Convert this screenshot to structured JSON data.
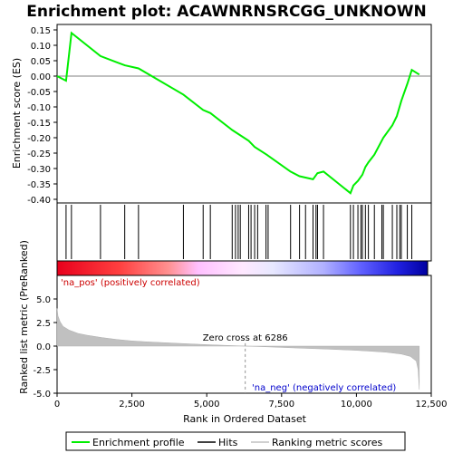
{
  "chart_data": {
    "type": "line",
    "title": "Enrichment plot: ACAWNRNSRCGG_UNKNOWN",
    "es_panel": {
      "ylabel": "Enrichment score (ES)",
      "ylim": [
        -0.4,
        0.15
      ],
      "yticks": [
        "0.15",
        "0.10",
        "0.05",
        "0.00",
        "-0.05",
        "-0.10",
        "-0.15",
        "-0.20",
        "-0.25",
        "-0.30",
        "-0.35",
        "-0.40"
      ],
      "ytick_values": [
        0.15,
        0.1,
        0.05,
        0.0,
        -0.05,
        -0.1,
        -0.15,
        -0.2,
        -0.25,
        -0.3,
        -0.35,
        -0.4
      ],
      "series": [
        {
          "name": "Enrichment profile",
          "color": "#00ee00",
          "x": [
            0,
            300,
            480,
            1450,
            2260,
            2720,
            4220,
            4880,
            5120,
            5850,
            6400,
            6600,
            7000,
            7800,
            8100,
            8550,
            8700,
            8900,
            9800,
            9900,
            10050,
            10200,
            10300,
            10400,
            10600,
            10900,
            11200,
            11350,
            11500,
            11700,
            11850,
            12100
          ],
          "y": [
            0.0,
            -0.015,
            0.14,
            0.065,
            0.035,
            0.025,
            -0.06,
            -0.11,
            -0.12,
            -0.175,
            -0.21,
            -0.23,
            -0.255,
            -0.31,
            -0.325,
            -0.335,
            -0.315,
            -0.31,
            -0.38,
            -0.355,
            -0.34,
            -0.32,
            -0.295,
            -0.28,
            -0.255,
            -0.2,
            -0.16,
            -0.13,
            -0.08,
            -0.025,
            0.02,
            0.005
          ]
        }
      ]
    },
    "hits": [
      300,
      480,
      1450,
      2260,
      2720,
      4220,
      4880,
      5120,
      5850,
      5960,
      6050,
      6120,
      6400,
      6480,
      6600,
      6700,
      6980,
      7050,
      7800,
      8100,
      8300,
      8550,
      8650,
      8700,
      8900,
      9800,
      9900,
      10050,
      10150,
      10200,
      10300,
      10400,
      10600,
      10850,
      10900,
      11200,
      11350,
      11450,
      11500,
      11700,
      11850
    ],
    "ranking_panel": {
      "ylabel": "Ranked list metric (PreRanked)",
      "xlabel": "Rank in Ordered Dataset",
      "ylim": [
        -5.0,
        7.5
      ],
      "yticks": [
        "5.0",
        "2.5",
        "0.0",
        "-2.5",
        "-5.0"
      ],
      "ytick_values": [
        5.0,
        2.5,
        0.0,
        -2.5,
        -5.0
      ],
      "xlim": [
        0,
        12500
      ],
      "xticks": [
        "0",
        "2,500",
        "5,000",
        "7,500",
        "10,000",
        "12,500"
      ],
      "xtick_values": [
        0,
        2500,
        5000,
        7500,
        10000,
        12500
      ],
      "metric_profile": {
        "x": [
          0,
          30,
          100,
          200,
          400,
          700,
          1000,
          1500,
          2000,
          2500,
          3000,
          4000,
          5000,
          6286,
          7000,
          8000,
          9000,
          10000,
          10500,
          11000,
          11500,
          11800,
          12000,
          12060,
          12100
        ],
        "y": [
          4.0,
          3.2,
          2.6,
          2.1,
          1.7,
          1.35,
          1.15,
          0.9,
          0.7,
          0.55,
          0.45,
          0.3,
          0.15,
          0.0,
          -0.08,
          -0.2,
          -0.32,
          -0.45,
          -0.55,
          -0.65,
          -0.85,
          -1.1,
          -1.6,
          -2.5,
          -4.6
        ]
      },
      "zero_cross_label": "Zero cross at 6286",
      "zero_cross": 6286,
      "pos_label": "'na_pos' (positively correlated)",
      "neg_label": "'na_neg' (negatively correlated)"
    },
    "legend": {
      "placement": "bottom",
      "items": [
        "Enrichment profile",
        "Hits",
        "Ranking metric scores"
      ]
    },
    "n_genes": 12100
  },
  "colors": {
    "profile": "#00ee00",
    "hits": "#000000",
    "metric_fill": "#c0c0c0",
    "pos_label": "#cc0000",
    "neg_label": "#0000cc",
    "zero_line": "#808080",
    "frame": "#000000"
  }
}
